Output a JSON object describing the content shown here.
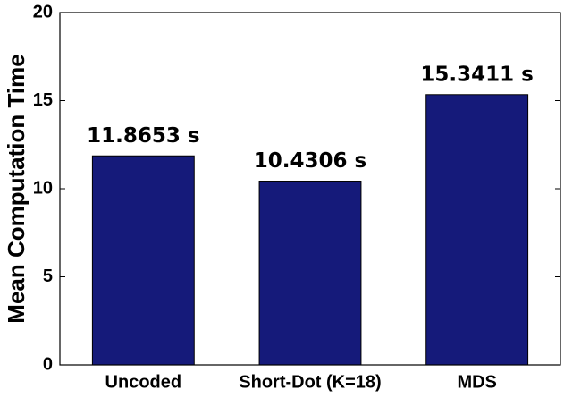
{
  "chart_data": {
    "type": "bar",
    "ylabel": "Mean Computation Time",
    "categories": [
      "Uncoded",
      "Short-Dot (K=18)",
      "MDS"
    ],
    "values": [
      11.8653,
      10.4306,
      15.3411
    ],
    "value_labels": [
      "11.8653 s",
      "10.4306 s",
      "15.3411 s"
    ],
    "color": "#151a7a",
    "ylim": [
      0,
      20
    ],
    "yticks": [
      0,
      5,
      10,
      15,
      20
    ],
    "grid": false
  }
}
